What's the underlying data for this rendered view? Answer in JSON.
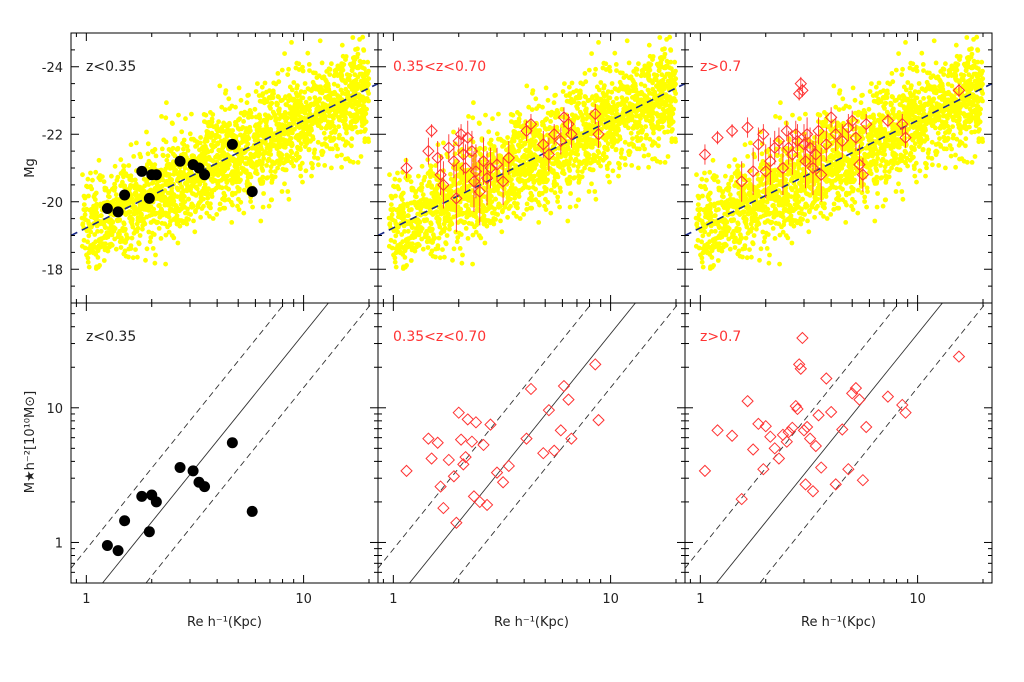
{
  "colors": {
    "background_points": "#ffff00",
    "low_z_points": "#000000",
    "high_z_points": "#ff3333",
    "fit_line": "#1a2a8a",
    "frame": "#000000"
  },
  "top_row": {
    "ylabel": "Mg",
    "yticks": [
      "-24",
      "-22",
      "-20",
      "-18"
    ]
  },
  "bottom_row": {
    "ylabel": "M★h⁻²[10¹⁰M⊙]",
    "yticks": [
      "10",
      "1"
    ]
  },
  "xaxis": {
    "label": "Re h⁻¹(Kpc)",
    "ticks": [
      "1",
      "10"
    ]
  },
  "chart_data": [
    {
      "type": "scatter",
      "panel": "top-left",
      "label": "z<0.35",
      "label_color": "#222222",
      "xscale": "log",
      "xlim": [
        0.85,
        22
      ],
      "ylim": [
        -17,
        -25
      ],
      "fit_line": {
        "x": [
          0.85,
          22
        ],
        "y": [
          -19.0,
          -23.5
        ]
      },
      "series": [
        {
          "marker": "filled-circle",
          "x": [
            1.25,
            1.4,
            1.5,
            1.8,
            1.95,
            2.0,
            2.1,
            2.7,
            3.1,
            3.3,
            3.5,
            4.7,
            5.8
          ],
          "y": [
            -19.8,
            -19.7,
            -20.2,
            -20.9,
            -20.1,
            -20.8,
            -20.8,
            -21.2,
            -21.1,
            -21.0,
            -20.8,
            -21.7,
            -20.3
          ]
        }
      ]
    },
    {
      "type": "scatter",
      "panel": "top-middle",
      "label": "0.35<z<0.70",
      "label_color": "#ff3333",
      "xscale": "log",
      "xlim": [
        0.85,
        22
      ],
      "ylim": [
        -17,
        -25
      ],
      "fit_line": {
        "x": [
          0.85,
          22
        ],
        "y": [
          -19.0,
          -23.5
        ]
      },
      "series": [
        {
          "marker": "open-diamond",
          "x": [
            1.15,
            1.45,
            1.5,
            1.6,
            1.65,
            1.7,
            1.8,
            1.9,
            1.95,
            2.0,
            2.05,
            2.1,
            2.15,
            2.2,
            2.3,
            2.35,
            2.4,
            2.5,
            2.6,
            2.7,
            2.8,
            3.0,
            3.2,
            3.4,
            4.1,
            4.3,
            4.9,
            5.2,
            5.5,
            5.9,
            6.1,
            6.4,
            6.6,
            8.5,
            8.8
          ],
          "y": [
            -21.0,
            -21.5,
            -22.1,
            -21.3,
            -20.8,
            -20.5,
            -21.6,
            -21.2,
            -20.1,
            -21.8,
            -22.0,
            -21.4,
            -21.0,
            -21.9,
            -21.5,
            -20.6,
            -20.9,
            -20.3,
            -21.2,
            -20.7,
            -21.0,
            -21.1,
            -20.6,
            -21.3,
            -22.1,
            -22.3,
            -21.7,
            -21.4,
            -22.0,
            -21.8,
            -22.5,
            -22.3,
            -22.0,
            -22.6,
            -22.0
          ],
          "yerr": [
            0.3,
            0.4,
            0.2,
            0.5,
            0.6,
            0.7,
            0.4,
            0.5,
            1.0,
            0.4,
            0.3,
            0.6,
            0.7,
            0.5,
            0.6,
            0.9,
            0.8,
            1.0,
            0.7,
            0.8,
            0.6,
            0.5,
            0.7,
            0.5,
            0.3,
            0.3,
            0.4,
            0.5,
            0.3,
            0.4,
            0.3,
            0.3,
            0.4,
            0.3,
            0.4
          ]
        }
      ]
    },
    {
      "type": "scatter",
      "panel": "top-right",
      "label": "z>0.7",
      "label_color": "#ff3333",
      "xscale": "log",
      "xlim": [
        0.85,
        22
      ],
      "ylim": [
        -17,
        -25
      ],
      "fit_line": {
        "x": [
          0.85,
          22
        ],
        "y": [
          -19.0,
          -23.5
        ]
      },
      "series": [
        {
          "marker": "open-diamond",
          "x": [
            1.05,
            1.2,
            1.4,
            1.55,
            1.65,
            1.75,
            1.85,
            1.95,
            2.0,
            2.1,
            2.2,
            2.3,
            2.4,
            2.5,
            2.55,
            2.65,
            2.75,
            2.8,
            2.85,
            2.9,
            2.95,
            3.0,
            3.05,
            3.1,
            3.2,
            3.3,
            3.4,
            3.5,
            3.6,
            3.8,
            4.0,
            4.2,
            4.5,
            4.8,
            5.0,
            5.2,
            5.4,
            5.6,
            5.8,
            7.3,
            8.5,
            8.8,
            15.5
          ],
          "y": [
            -21.4,
            -21.9,
            -22.1,
            -20.6,
            -22.2,
            -20.9,
            -21.7,
            -22.0,
            -20.9,
            -21.2,
            -21.6,
            -21.8,
            -21.0,
            -22.1,
            -21.6,
            -21.4,
            -22.0,
            -21.8,
            -23.2,
            -23.5,
            -23.3,
            -21.7,
            -21.2,
            -22.0,
            -21.6,
            -21.0,
            -21.4,
            -22.1,
            -20.8,
            -21.7,
            -22.5,
            -22.0,
            -21.8,
            -22.2,
            -22.4,
            -21.9,
            -21.1,
            -20.8,
            -22.3,
            -22.4,
            -22.3,
            -21.9,
            -23.3
          ],
          "yerr": [
            0.3,
            0.2,
            0.2,
            0.6,
            0.3,
            0.7,
            0.5,
            0.3,
            0.8,
            0.7,
            0.5,
            0.4,
            0.8,
            0.3,
            0.5,
            0.6,
            0.4,
            0.5,
            0.2,
            0.2,
            0.2,
            0.6,
            0.8,
            0.5,
            0.6,
            0.8,
            0.6,
            0.4,
            0.8,
            0.5,
            0.3,
            0.5,
            0.5,
            0.4,
            0.3,
            0.4,
            0.6,
            0.5,
            0.3,
            0.2,
            0.3,
            0.3,
            0.2
          ]
        }
      ]
    },
    {
      "type": "scatter",
      "panel": "bottom-left",
      "label": "z<0.35",
      "label_color": "#222222",
      "xscale": "log",
      "yscale": "log",
      "xlim": [
        0.85,
        22
      ],
      "ylim": [
        0.5,
        60
      ],
      "relation_lines": {
        "solid_offset_dex": 0.0,
        "dashed_offset_dex": 0.4,
        "slope": 2.0,
        "intercept_log": -0.45
      },
      "series": [
        {
          "marker": "filled-circle",
          "x": [
            1.25,
            1.4,
            1.5,
            1.8,
            1.95,
            2.0,
            2.1,
            2.7,
            3.1,
            3.3,
            3.5,
            4.7,
            5.8
          ],
          "y": [
            0.95,
            0.87,
            1.45,
            2.2,
            1.2,
            2.25,
            2.0,
            3.6,
            3.4,
            2.8,
            2.6,
            5.5,
            1.7
          ]
        }
      ]
    },
    {
      "type": "scatter",
      "panel": "bottom-middle",
      "label": "0.35<z<0.70",
      "label_color": "#ff3333",
      "xscale": "log",
      "yscale": "log",
      "xlim": [
        0.85,
        22
      ],
      "ylim": [
        0.5,
        60
      ],
      "relation_lines": {
        "solid_offset_dex": 0.0,
        "dashed_offset_dex": 0.4,
        "slope": 2.0,
        "intercept_log": -0.45
      },
      "series": [
        {
          "marker": "open-diamond",
          "x": [
            1.15,
            1.45,
            1.5,
            1.6,
            1.65,
            1.7,
            1.8,
            1.9,
            1.95,
            2.0,
            2.05,
            2.1,
            2.15,
            2.2,
            2.3,
            2.35,
            2.4,
            2.5,
            2.6,
            2.7,
            2.8,
            3.0,
            3.2,
            3.4,
            4.1,
            4.3,
            4.9,
            5.2,
            5.5,
            5.9,
            6.1,
            6.4,
            6.6,
            8.5,
            8.8
          ],
          "y": [
            3.4,
            5.9,
            4.2,
            5.5,
            2.6,
            1.8,
            4.1,
            3.1,
            1.4,
            9.2,
            5.8,
            3.8,
            4.3,
            8.2,
            5.6,
            2.2,
            7.8,
            2.0,
            5.3,
            1.9,
            7.5,
            3.3,
            2.8,
            3.7,
            5.9,
            13.8,
            4.6,
            9.6,
            4.8,
            6.8,
            14.5,
            11.5,
            5.9,
            21.0,
            8.1
          ]
        }
      ]
    },
    {
      "type": "scatter",
      "panel": "bottom-right",
      "label": "z>0.7",
      "label_color": "#ff3333",
      "xscale": "log",
      "yscale": "log",
      "xlim": [
        0.85,
        22
      ],
      "ylim": [
        0.5,
        60
      ],
      "relation_lines": {
        "solid_offset_dex": 0.0,
        "dashed_offset_dex": 0.4,
        "slope": 2.0,
        "intercept_log": -0.45
      },
      "series": [
        {
          "marker": "open-diamond",
          "x": [
            1.05,
            1.2,
            1.4,
            1.55,
            1.65,
            1.75,
            1.85,
            1.95,
            2.0,
            2.1,
            2.2,
            2.3,
            2.4,
            2.5,
            2.55,
            2.65,
            2.75,
            2.8,
            2.85,
            2.9,
            2.95,
            3.0,
            3.05,
            3.1,
            3.2,
            3.3,
            3.4,
            3.5,
            3.6,
            3.8,
            4.0,
            4.2,
            4.5,
            4.8,
            5.0,
            5.2,
            5.4,
            5.6,
            5.8,
            7.3,
            8.5,
            8.8,
            15.5
          ],
          "y": [
            3.4,
            6.8,
            6.2,
            2.1,
            11.2,
            4.9,
            7.6,
            3.5,
            7.3,
            6.1,
            5.0,
            4.2,
            6.3,
            5.6,
            6.6,
            7.1,
            10.3,
            9.8,
            21.0,
            19.5,
            33.0,
            6.8,
            2.7,
            7.2,
            5.9,
            2.4,
            5.2,
            8.8,
            3.6,
            16.5,
            9.3,
            2.7,
            6.9,
            3.5,
            12.8,
            14.0,
            11.5,
            2.9,
            7.2,
            12.1,
            10.5,
            9.2,
            24.0
          ]
        }
      ]
    }
  ]
}
